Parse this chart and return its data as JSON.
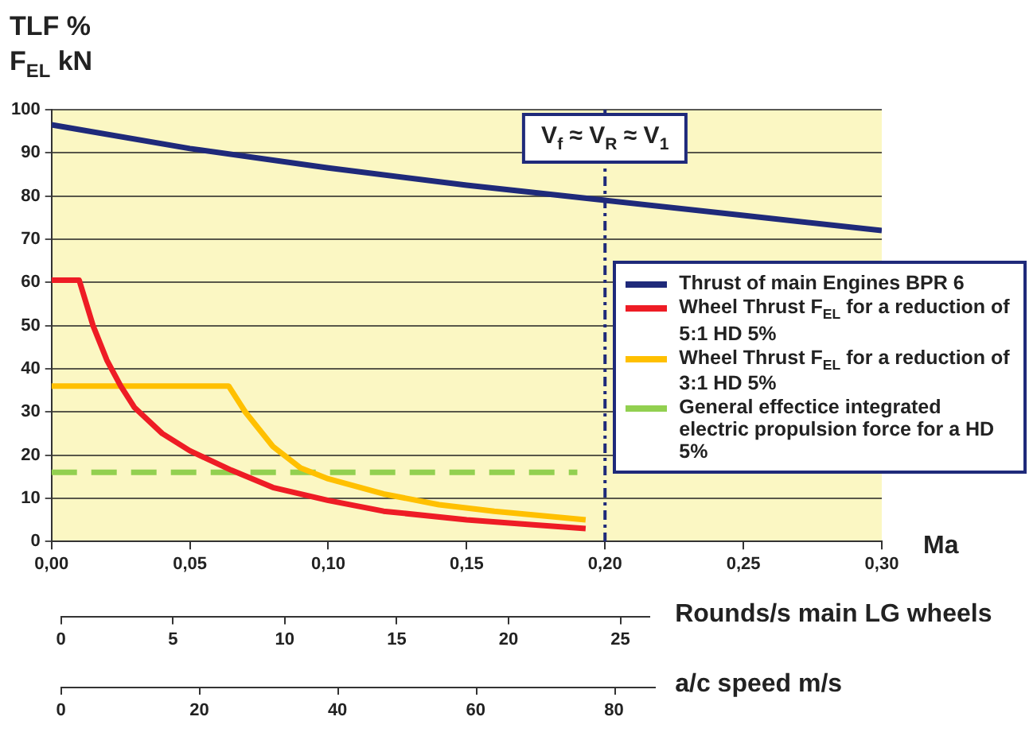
{
  "chart_data": {
    "type": "line",
    "ylabel": "TLF %\nF$_{EL}$ kN",
    "xlabel": "Ma",
    "x2label": "Rounds/s main LG wheels",
    "annotations": [
      "a/c speed m/s",
      "0",
      "20",
      "40",
      "60",
      "80"
    ],
    "xlim": [
      0,
      0.3
    ],
    "xticks": [
      {
        "value": 0,
        "label": "0,00"
      },
      {
        "value": 0.05,
        "label": "0,05"
      },
      {
        "value": 0.1,
        "label": "0,10"
      },
      {
        "value": 0.15,
        "label": "0,15"
      },
      {
        "value": 0.2,
        "label": "0,20"
      },
      {
        "value": 0.25,
        "label": "0,25"
      },
      {
        "value": 0.3,
        "label": "0,30"
      }
    ],
    "ylim": [
      0,
      100
    ],
    "yticks": [
      0,
      10,
      20,
      30,
      40,
      50,
      60,
      70,
      80,
      90,
      100
    ],
    "x2lim": [
      0,
      26.3
    ],
    "x2ticks": [
      0,
      5,
      10,
      15,
      20,
      25
    ],
    "series": [
      {
        "name": "Thrust of main Engines BPR 6",
        "color": "#1f2a7a",
        "x": [
          0,
          0.05,
          0.1,
          0.15,
          0.2,
          0.25,
          0.3
        ],
        "values": [
          96.5,
          91,
          86.5,
          82.5,
          79,
          75.5,
          72
        ]
      },
      {
        "name": "Wheel Thrust F$_{EL}$ for a reduction of 5:1 HD 5%",
        "color": "#ee1c25",
        "x": [
          0,
          0.01,
          0.015,
          0.02,
          0.025,
          0.03,
          0.04,
          0.05,
          0.065,
          0.08,
          0.1,
          0.12,
          0.15,
          0.175,
          0.193
        ],
        "values": [
          60.5,
          60.5,
          50,
          42,
          36,
          31,
          25,
          21,
          16.5,
          12.5,
          9.5,
          7,
          5,
          3.8,
          3
        ]
      },
      {
        "name": "Wheel Thrust F$_{EL}$ for a reduction of 3:1 HD 5%",
        "color": "#ffc000",
        "x": [
          0,
          0.064,
          0.07,
          0.08,
          0.09,
          0.1,
          0.12,
          0.14,
          0.16,
          0.18,
          0.193
        ],
        "values": [
          36,
          36,
          30,
          22,
          17,
          14.5,
          11,
          8.5,
          7,
          5.8,
          5
        ]
      },
      {
        "name": "General effectice integrated electric propulsion force for a HD 5%",
        "color": "#92d050",
        "line_style": "dashed",
        "x": [
          0,
          0.19
        ],
        "values": [
          16,
          16
        ]
      }
    ],
    "ref_lines": [
      {
        "axis": "x",
        "value": 0.2,
        "label": "V$_{f}$ ≈ V$_{R}$ ≈ V$_{1}$",
        "color": "#1f2a7a",
        "line_style": "dotted"
      }
    ],
    "grid": "y",
    "legend": "right",
    "marker": "none"
  }
}
